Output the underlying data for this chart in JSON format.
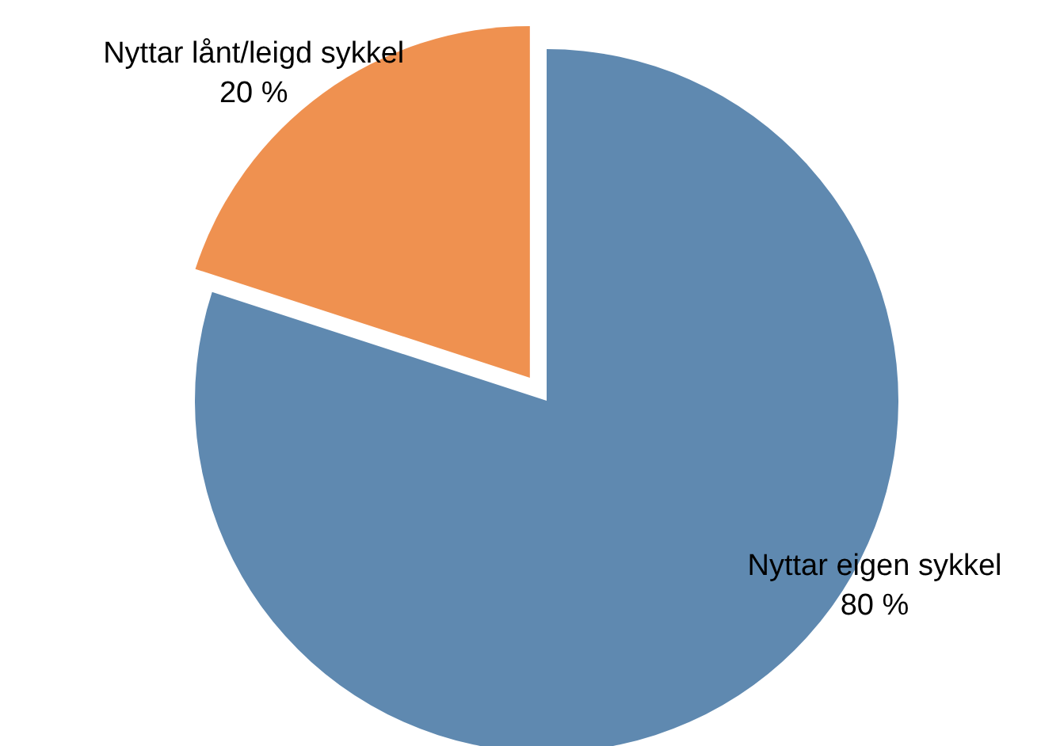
{
  "chart_data": {
    "type": "pie",
    "categories": [
      "Nyttar eigen sykkel",
      "Nyttar lånt/leigd sykkel"
    ],
    "values": [
      80,
      20
    ],
    "colors": [
      "#5f89b0",
      "#ef9150"
    ],
    "value_labels": [
      "80 %",
      "20 %"
    ],
    "legend": false
  }
}
